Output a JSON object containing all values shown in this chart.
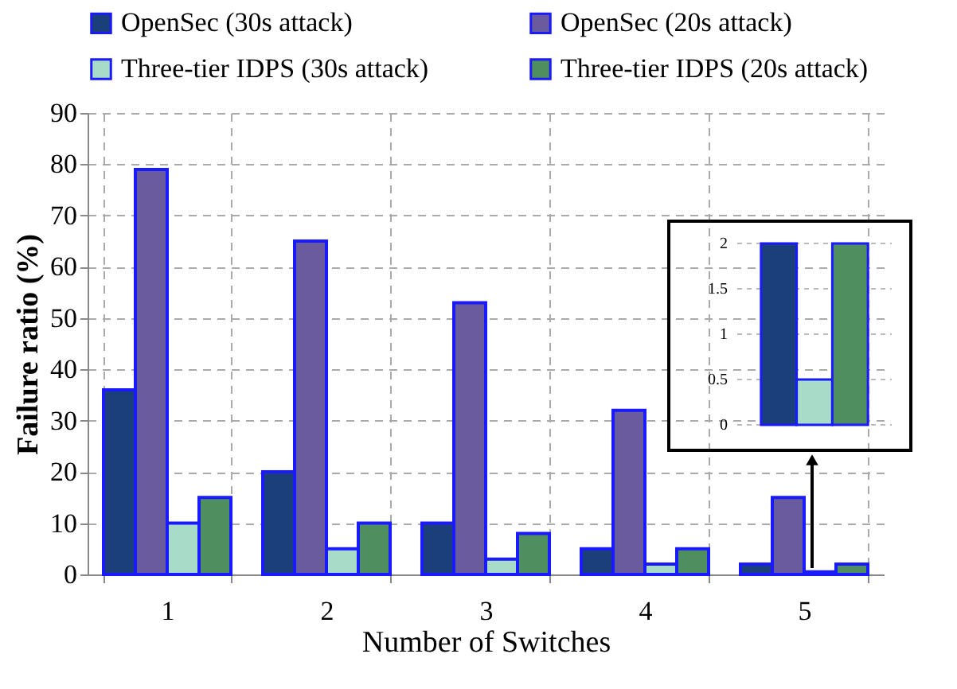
{
  "chart_data": [
    {
      "type": "bar",
      "xlabel": "Number of Switches",
      "ylabel": "Failure ratio (%)",
      "categories": [
        "1",
        "2",
        "3",
        "4",
        "5"
      ],
      "ylim": [
        0,
        90
      ],
      "yticks": [
        0,
        10,
        20,
        30,
        40,
        50,
        60,
        70,
        80,
        90
      ],
      "grid": true,
      "legend": "top",
      "series": [
        {
          "name": "OpenSec (30s attack)",
          "color": "#1b3f7a",
          "values": [
            36,
            20,
            10,
            5,
            2
          ]
        },
        {
          "name": "OpenSec (20s attack)",
          "color": "#6a5a9e",
          "values": [
            79,
            65,
            53,
            32,
            15
          ]
        },
        {
          "name": "Three-tier IDPS (30s attack)",
          "color": "#a8dcc8",
          "values": [
            10,
            5,
            3,
            2,
            0.5
          ]
        },
        {
          "name": "Three-tier IDPS (20s attack)",
          "color": "#4f8f5f",
          "values": [
            15,
            10,
            8,
            5,
            2
          ]
        }
      ]
    },
    {
      "type": "bar",
      "categories": [
        null
      ],
      "ylim": [
        0,
        2
      ],
      "yticks": [
        0,
        0.5,
        1,
        1.5,
        2
      ],
      "grid": "y",
      "tick_labels": "y",
      "series": [
        {
          "color": "#1b3f7a",
          "values": [
            2
          ]
        },
        {
          "color": "#6a5a9e",
          "values": [
            null
          ]
        },
        {
          "color": "#a8dcc8",
          "values": [
            0.5
          ]
        },
        {
          "color": "#4f8f5f",
          "values": [
            2
          ]
        }
      ]
    }
  ]
}
